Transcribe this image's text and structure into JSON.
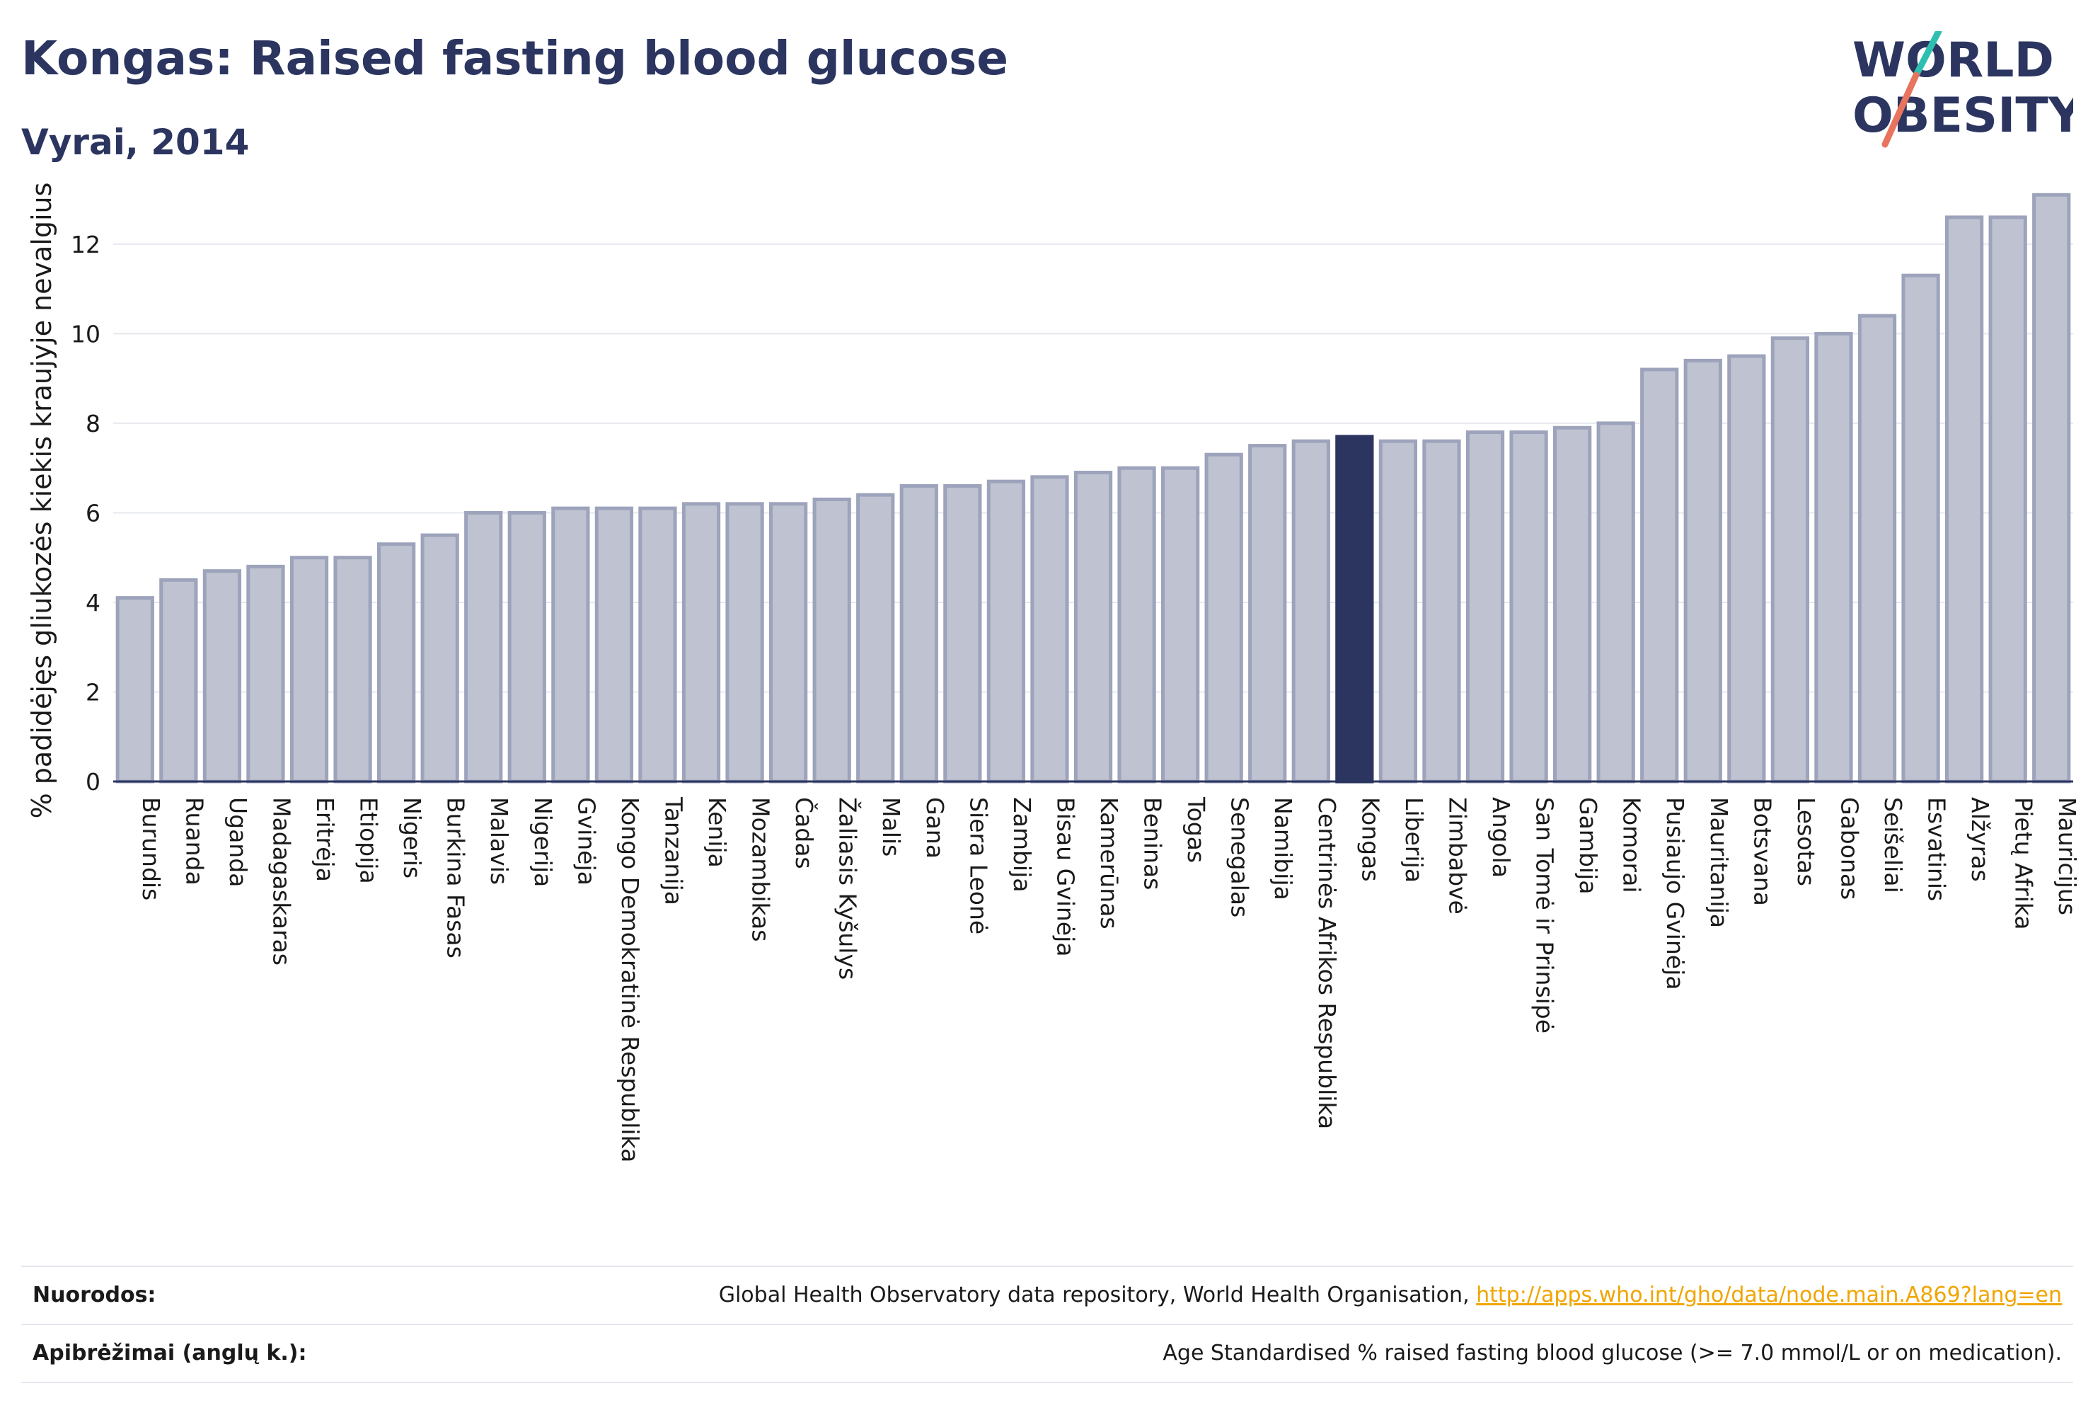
{
  "header": {
    "title": "Kongas: Raised fasting blood glucose",
    "subtitle": "Vyrai, 2014"
  },
  "logo": {
    "line1": "WORLD",
    "line2": "OBESITY"
  },
  "footer": {
    "sources_label": "Nuorodos:",
    "sources_text": "Global Health Observatory data repository, World Health Organisation, ",
    "sources_link": "http://apps.who.int/gho/data/node.main.A869?lang=en",
    "definition_label": "Apibrėžimai (anglų k.):",
    "definition_text": "Age Standardised % raised fasting blood glucose (>= 7.0 mmol/L or on medication)."
  },
  "colors": {
    "bar": "#bfc3d1",
    "bar_edge": "#9da3bb",
    "highlight": "#2b3560",
    "title": "#2b3560"
  },
  "chart_data": {
    "type": "bar",
    "title": "Kongas: Raised fasting blood glucose",
    "subtitle": "Vyrai, 2014",
    "ylabel": "% padidėjęs gliukozės kiekis kraujyje nevalgius",
    "xlabel": "",
    "ylim": [
      0,
      13.5
    ],
    "yticks": [
      0,
      2,
      4,
      6,
      8,
      10,
      12
    ],
    "grid": true,
    "highlight": "Kongas",
    "categories": [
      "Burundis",
      "Ruanda",
      "Uganda",
      "Madagaskaras",
      "Eritrėja",
      "Etiopija",
      "Nigeris",
      "Burkina Fasas",
      "Malavis",
      "Nigerija",
      "Gvinėja",
      "Kongo Demokratinė Respublika",
      "Tanzanija",
      "Kenija",
      "Mozambikas",
      "Čadas",
      "Žaliasis Kyšulys",
      "Malis",
      "Gana",
      "Siera Leonė",
      "Zambija",
      "Bisau Gvinėja",
      "Kamerūnas",
      "Beninas",
      "Togas",
      "Senegalas",
      "Namibija",
      "Centrinės Afrikos Respublika",
      "Kongas",
      "Liberija",
      "Zimbabvė",
      "Angola",
      "San Tomė ir Prinsipė",
      "Gambija",
      "Komorai",
      "Pusiaujo Gvinėja",
      "Mauritanija",
      "Botsvana",
      "Lesotas",
      "Gabonas",
      "Seišeliai",
      "Esvatinis",
      "Alžyras",
      "Pietų Afrika",
      "Mauricijus"
    ],
    "values": [
      4.1,
      4.5,
      4.7,
      4.8,
      5.0,
      5.0,
      5.3,
      5.5,
      6.0,
      6.0,
      6.1,
      6.1,
      6.1,
      6.2,
      6.2,
      6.2,
      6.3,
      6.4,
      6.6,
      6.6,
      6.7,
      6.8,
      6.9,
      7.0,
      7.0,
      7.3,
      7.5,
      7.6,
      7.7,
      7.6,
      7.6,
      7.8,
      7.8,
      7.9,
      8.0,
      9.2,
      9.4,
      9.5,
      9.9,
      10.0,
      10.4,
      11.3,
      12.6,
      12.6,
      13.1
    ]
  }
}
